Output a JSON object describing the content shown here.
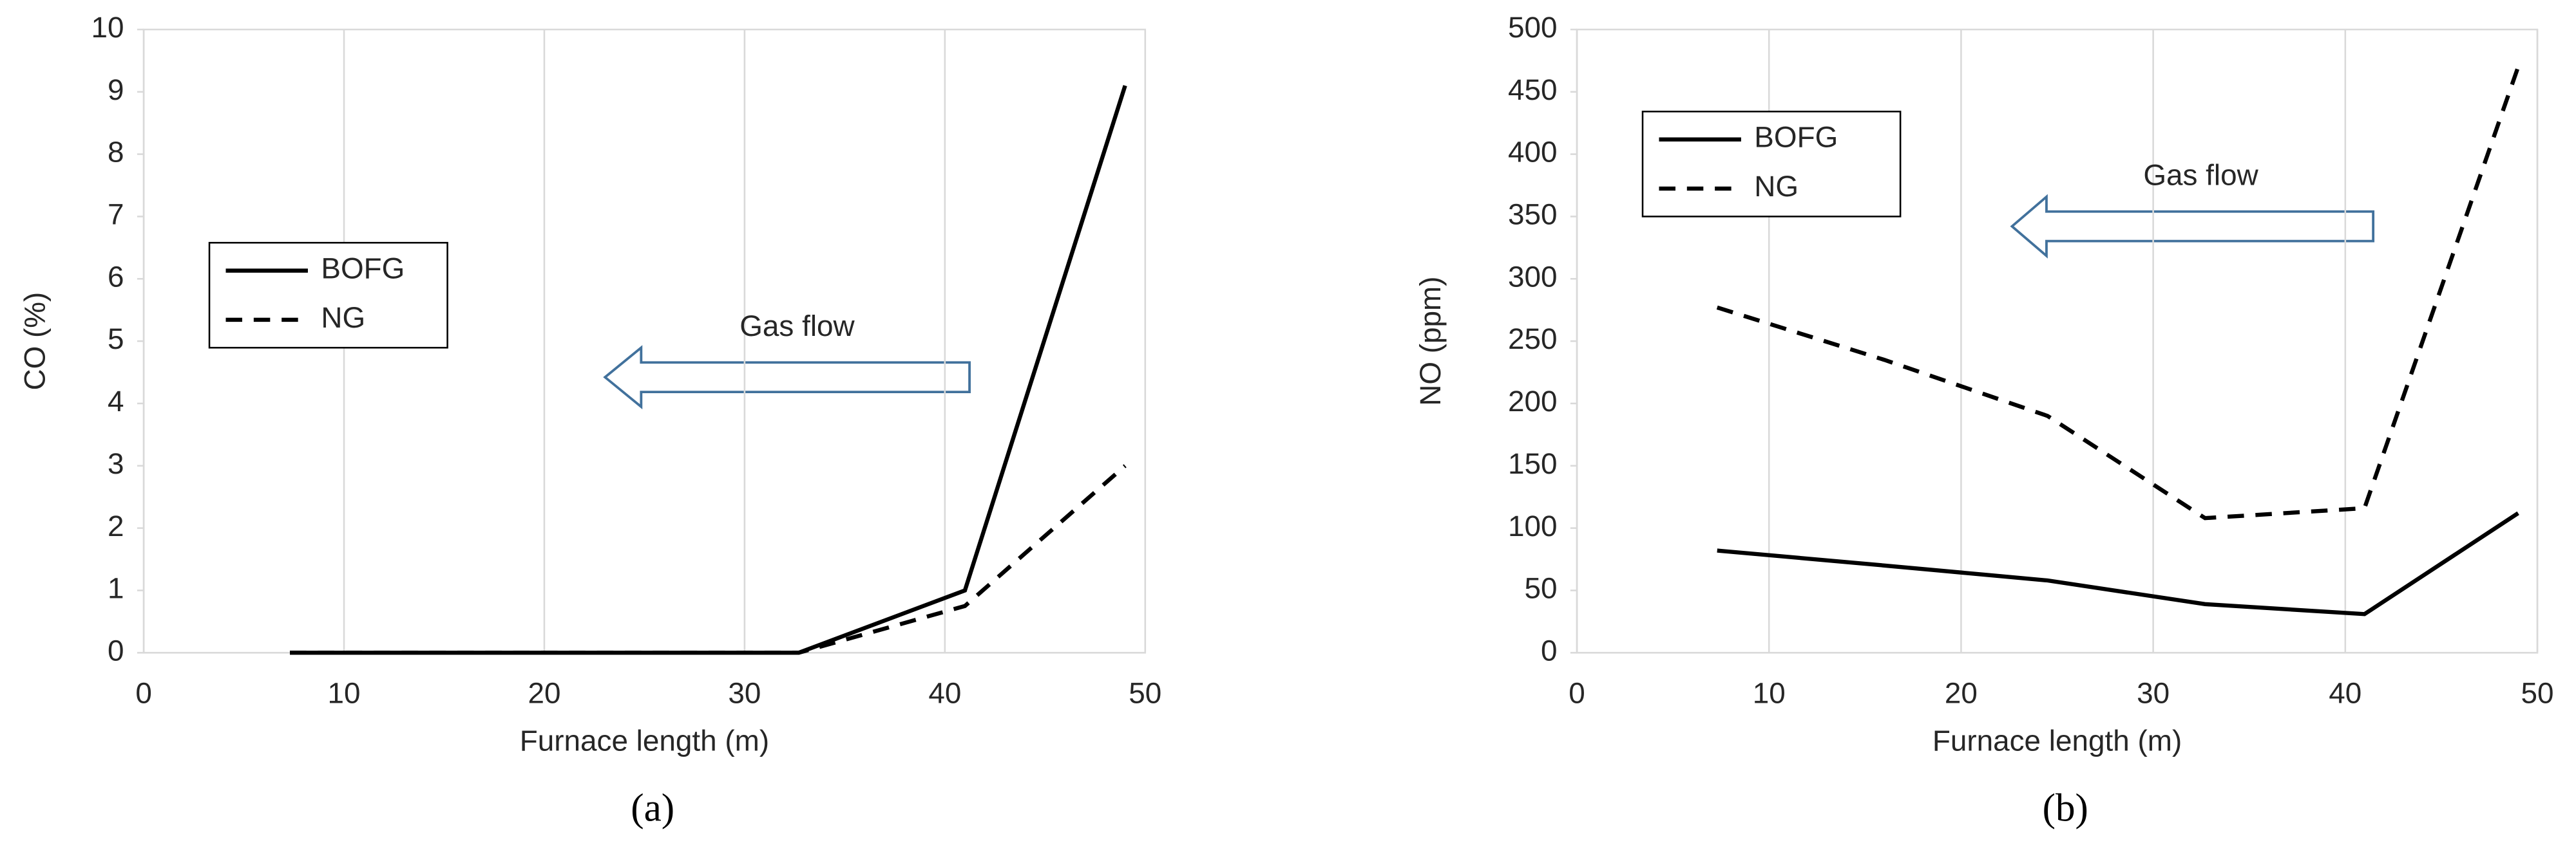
{
  "chart_data": [
    {
      "type": "line",
      "x_label": "Furnace length (m)",
      "y_label": "CO  (%)",
      "x": [
        7.3,
        16,
        24.5,
        32.7,
        41,
        49
      ],
      "series": [
        {
          "name": "BOFG",
          "color": "#000000",
          "line_style": "solid",
          "values": [
            0,
            0,
            0,
            0,
            1,
            9.1
          ]
        },
        {
          "name": "NG",
          "color": "#000000",
          "line_style": "dashed",
          "values": [
            0,
            0,
            0,
            0,
            0.75,
            3
          ]
        }
      ],
      "xlim": [
        0,
        50
      ],
      "xticks": [
        0,
        10,
        20,
        30,
        40,
        50
      ],
      "ylim": [
        0,
        10
      ],
      "yticks": [
        0,
        1,
        2,
        3,
        4,
        5,
        6,
        7,
        8,
        9,
        10
      ],
      "grid": true,
      "legend": "center left",
      "annotation": "Gas flow",
      "panel_label": "(a)"
    },
    {
      "type": "line",
      "x_label": "Furnace length (m)",
      "y_label": "NO  (ppm)",
      "x": [
        7.3,
        16,
        24.5,
        32.7,
        41,
        49
      ],
      "series": [
        {
          "name": "BOFG",
          "color": "#000000",
          "line_style": "solid",
          "values": [
            82,
            70,
            58,
            39,
            31,
            112
          ]
        },
        {
          "name": "NG",
          "color": "#000000",
          "line_style": "dashed",
          "values": [
            277,
            235,
            190,
            108,
            116,
            470
          ]
        }
      ],
      "xlim": [
        0,
        50
      ],
      "xticks": [
        0,
        10,
        20,
        30,
        40,
        50
      ],
      "ylim": [
        0,
        500
      ],
      "yticks": [
        0,
        50,
        100,
        150,
        200,
        250,
        300,
        350,
        400,
        450,
        500
      ],
      "grid": true,
      "legend": "upper left",
      "annotation": "Gas flow",
      "panel_label": "(b)"
    }
  ]
}
